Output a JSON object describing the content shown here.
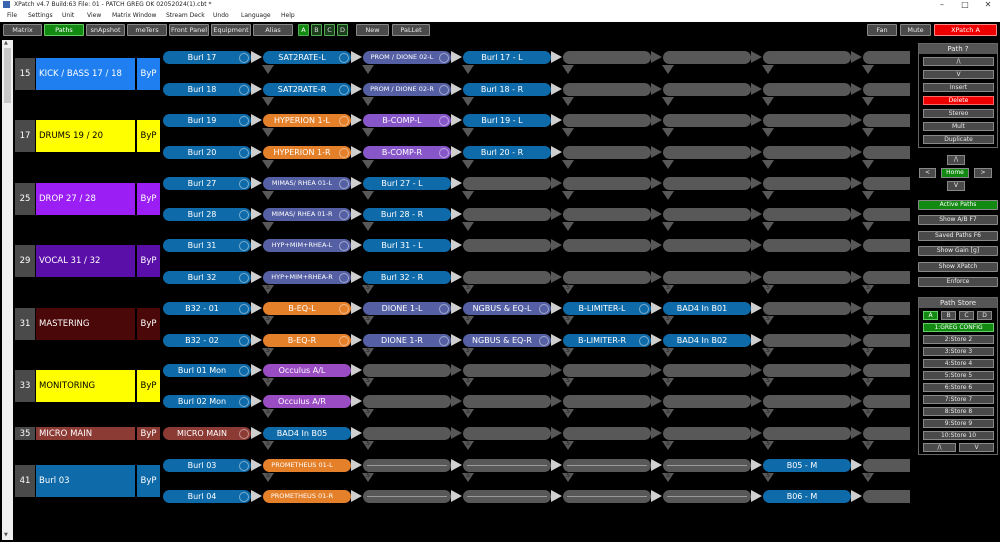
{
  "window": {
    "title": "XPatch v4.7 Build:63  File: 01 - PATCH GREG OK 02052024(1).cbt *",
    "minimize": "–",
    "maximize": "□",
    "close": "✕"
  },
  "menu": [
    "File",
    "Settings",
    "Unit",
    "View",
    "Matrix Window",
    "Stream Deck",
    "Undo",
    "Language",
    "Help"
  ],
  "toolbar": {
    "tabs": [
      "Matrix",
      "Paths",
      "snApshot",
      "meTers",
      "Front Panel",
      "Equipment",
      "Alias"
    ],
    "active_tab": "Paths",
    "banks": [
      "A",
      "B",
      "C",
      "D"
    ],
    "active_bank": "A",
    "new_label": "New",
    "pallet_label": "PaLLet",
    "fan_label": "Fan",
    "mute_label": "Mute",
    "device_label": "XPatch A"
  },
  "colors": {
    "blue_path": "#0e6aa8",
    "orange_device": "#e5802a",
    "slate_device": "#5460a3",
    "purple_device": "#8757c9",
    "violet_device": "#9a4dc2",
    "empty_slot": "#585858",
    "active_green": "#128a12",
    "delete_red": "#e00000"
  },
  "groups": [
    {
      "num": "15",
      "name": "KICK / BASS 17 / 18",
      "byp": "ByP",
      "color": "#1f7ff0",
      "text": "#fff"
    },
    {
      "num": "17",
      "name": "DRUMS 19 / 20",
      "byp": "ByP",
      "color": "#ffff00",
      "text": "#000"
    },
    {
      "num": "25",
      "name": "DROP 27 / 28",
      "byp": "ByP",
      "color": "#9b1ef5",
      "text": "#fff"
    },
    {
      "num": "29",
      "name": "VOCAL 31 / 32",
      "byp": "ByP",
      "color": "#5a0fa8",
      "text": "#fff"
    },
    {
      "num": "31",
      "name": "MASTERING",
      "byp": "ByP",
      "color": "#4a0808",
      "text": "#fff"
    },
    {
      "num": "33",
      "name": "MONITORING",
      "byp": "ByP",
      "color": "#ffff00",
      "text": "#000"
    },
    {
      "num": "35",
      "name": "MICRO MAIN",
      "byp": "ByP",
      "color": "#8c3a34",
      "text": "#fff"
    },
    {
      "num": "41",
      "name": "Burl 03",
      "byp": "ByP",
      "color": "#0e6aa8",
      "text": "#fff"
    }
  ],
  "paths": [
    {
      "row": 0,
      "slots": [
        "Burl 17",
        "SAT2RATE-L",
        "PROM / DIONE 02-L",
        "Burl 17 - L",
        "",
        "",
        "",
        ""
      ]
    },
    {
      "row": 1,
      "slots": [
        "Burl 18",
        "SAT2RATE-R",
        "PROM / DIONE 02-R",
        "Burl 18 - R",
        "",
        "",
        "",
        ""
      ]
    },
    {
      "row": 2,
      "slots": [
        "Burl 19",
        "HYPERION 1-L",
        "B-COMP-L",
        "Burl 19 - L",
        "",
        "",
        "",
        ""
      ]
    },
    {
      "row": 3,
      "slots": [
        "Burl 20",
        "HYPERION 1-R",
        "B-COMP-R",
        "Burl 20 - R",
        "",
        "",
        "",
        ""
      ]
    },
    {
      "row": 4,
      "slots": [
        "Burl 27",
        "MIMAS/ RHEA 01-L",
        "Burl 27 - L",
        "",
        "",
        "",
        "",
        ""
      ]
    },
    {
      "row": 5,
      "slots": [
        "Burl 28",
        "MIMAS/ RHEA 01-R",
        "Burl 28 - R",
        "",
        "",
        "",
        "",
        ""
      ]
    },
    {
      "row": 6,
      "slots": [
        "Burl 31",
        "HYP+MIM+RHEA-L",
        "Burl 31 - L",
        "",
        "",
        "",
        "",
        ""
      ]
    },
    {
      "row": 7,
      "slots": [
        "Burl 32",
        "HYP+MIM+RHEA-R",
        "Burl 32 - R",
        "",
        "",
        "",
        "",
        ""
      ]
    },
    {
      "row": 8,
      "slots": [
        "B32 - 01",
        "B-EQ-L",
        "DIONE 1-L",
        "NGBUS & EQ-L",
        "B-LIMITER-L",
        "BAD4  In B01",
        "",
        ""
      ]
    },
    {
      "row": 9,
      "slots": [
        "B32 - 02",
        "B-EQ-R",
        "DIONE 1-R",
        "NGBUS & EQ-R",
        "B-LIMITER-R",
        "BAD4  In B02",
        "",
        ""
      ]
    },
    {
      "row": 10,
      "slots": [
        "Burl 01 Mon",
        "Occulus A/L",
        "",
        "",
        "",
        "",
        "",
        ""
      ]
    },
    {
      "row": 11,
      "slots": [
        "Burl 02 Mon",
        "Occulus A/R",
        "",
        "",
        "",
        "",
        "",
        ""
      ]
    },
    {
      "row": 12,
      "slots": [
        "MICRO MAIN",
        "BAD4  In B05",
        "",
        "",
        "",
        "",
        "",
        ""
      ]
    },
    {
      "row": 13,
      "slots": [
        "Burl 03",
        "PROMETHEUS 01-L",
        "",
        "",
        "",
        "",
        "B05 - M",
        ""
      ]
    },
    {
      "row": 14,
      "slots": [
        "Burl 04",
        "PROMETHEUS 01-R",
        "",
        "",
        "",
        "",
        "B06 - M",
        ""
      ]
    }
  ],
  "path_panel": {
    "title": "Path ?",
    "up": "/\\",
    "down": "V",
    "insert": "Insert",
    "delete": "Delete",
    "stereo": "Stereo",
    "mult": "Mult",
    "duplicate": "Duplicate"
  },
  "nav": {
    "up": "/\\",
    "left": "<",
    "home": "Home",
    "right": ">",
    "down": "V"
  },
  "view_buttons": [
    "Active Paths",
    "Show A/B F7",
    "Saved Paths F6",
    "Show Gain [g]",
    "Show XPatch",
    "Enforce"
  ],
  "store_panel": {
    "title": "Path Store",
    "banks": [
      "A",
      "B",
      "C",
      "D"
    ],
    "active_bank": "A",
    "stores": [
      "1:GREG CONFIG",
      "2:Store 2",
      "3:Store 3",
      "4:Store 4",
      "5:Store 5",
      "6:Store 6",
      "7:Store 7",
      "8:Store 8",
      "9:Store 9",
      "10:Store 10"
    ],
    "active_store": "1:GREG CONFIG",
    "up": "/\\",
    "down": "V"
  },
  "split_marker": "S"
}
